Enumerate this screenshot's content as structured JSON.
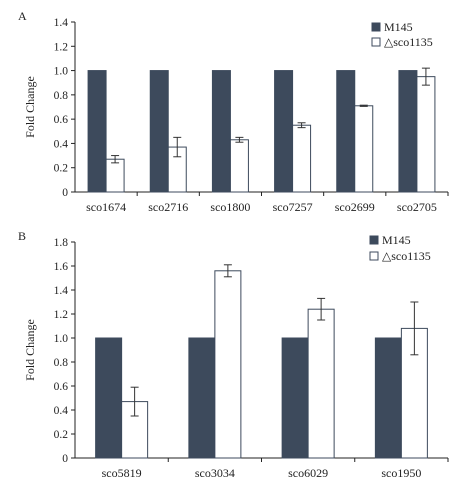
{
  "chart_data": [
    {
      "panel": "A",
      "type": "bar",
      "ylabel": "Fold Change",
      "ylim": [
        0,
        1.4
      ],
      "yticks": [
        "0",
        "0.2",
        "0.4",
        "0.6",
        "0.8",
        "1.0",
        "1.2",
        "1.4"
      ],
      "categories": [
        "sco1674",
        "sco2716",
        "sco1800",
        "sco7257",
        "sco2699",
        "sco2705"
      ],
      "series": [
        {
          "name": "M145",
          "values": [
            1.0,
            1.0,
            1.0,
            1.0,
            1.0,
            1.0
          ],
          "error": [
            0,
            0,
            0,
            0,
            0,
            0
          ],
          "color": "#3d4a5c"
        },
        {
          "name": "△sco1135",
          "values": [
            0.27,
            0.37,
            0.43,
            0.55,
            0.71,
            0.95
          ],
          "error": [
            0.03,
            0.08,
            0.02,
            0.02,
            0.005,
            0.07
          ],
          "color": "#ffffff"
        }
      ],
      "legend_position": "top-right",
      "grid": false
    },
    {
      "panel": "B",
      "type": "bar",
      "ylabel": "Fold Change",
      "ylim": [
        0,
        1.8
      ],
      "yticks": [
        "0",
        "0.2",
        "0.4",
        "0.6",
        "0.8",
        "1.0",
        "1.2",
        "1.4",
        "1.6",
        "1.8"
      ],
      "categories": [
        "sco5819",
        "sco3034",
        "sco6029",
        "sco1950"
      ],
      "series": [
        {
          "name": "M145",
          "values": [
            1.0,
            1.0,
            1.0,
            1.0
          ],
          "error": [
            0,
            0,
            0,
            0
          ],
          "color": "#3d4a5c"
        },
        {
          "name": "△sco1135",
          "values": [
            0.47,
            1.56,
            1.24,
            1.08
          ],
          "error": [
            0.12,
            0.05,
            0.09,
            0.22
          ],
          "color": "#ffffff"
        }
      ],
      "legend_position": "top-right",
      "grid": false
    }
  ]
}
